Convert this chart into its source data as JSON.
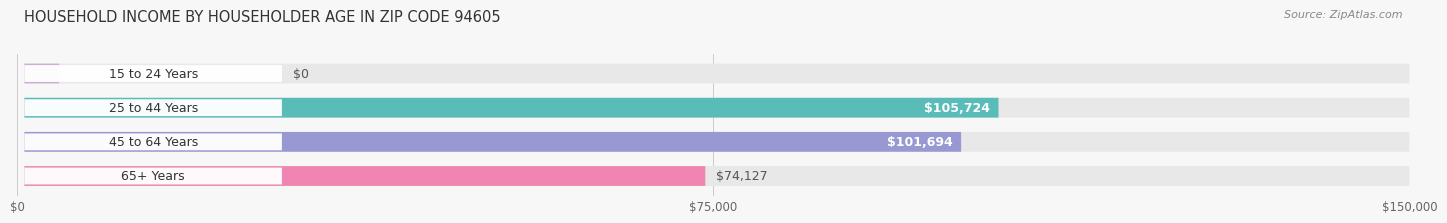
{
  "title": "HOUSEHOLD INCOME BY HOUSEHOLDER AGE IN ZIP CODE 94605",
  "source": "Source: ZipAtlas.com",
  "categories": [
    "15 to 24 Years",
    "25 to 44 Years",
    "45 to 64 Years",
    "65+ Years"
  ],
  "values": [
    0,
    105724,
    101694,
    74127
  ],
  "bar_colors": [
    "#c9a8d4",
    "#4ab8b4",
    "#9090d0",
    "#f07aaa"
  ],
  "xlim": [
    0,
    150000
  ],
  "xticks": [
    0,
    75000,
    150000
  ],
  "xtick_labels": [
    "$0",
    "$75,000",
    "$150,000"
  ],
  "value_labels": [
    "$0",
    "$105,724",
    "$101,694",
    "$74,127"
  ],
  "bg_color": "#f7f7f7",
  "bar_bg_color": "#e8e8e8",
  "title_fontsize": 10.5,
  "source_fontsize": 8,
  "label_fontsize": 9,
  "value_fontsize": 9,
  "bar_height": 0.58
}
